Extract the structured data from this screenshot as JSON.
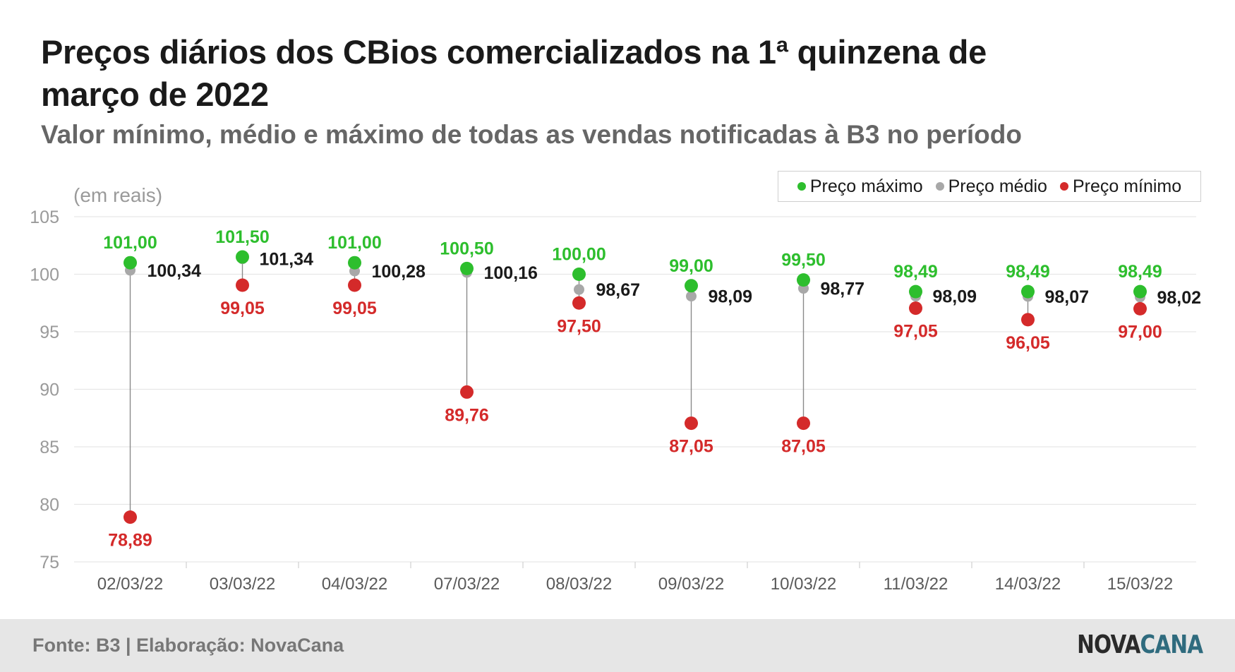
{
  "header": {
    "title": "Preços diários dos CBios comercializados na 1ª quinzena de março de 2022",
    "subtitle": "Valor mínimo, médio e máximo de todas as vendas notificadas à B3 no período"
  },
  "legend": {
    "max_label": "Preço máximo",
    "avg_label": "Preço médio",
    "min_label": "Preço mínimo"
  },
  "footer": {
    "source": "Fonte: B3 | Elaboração: NovaCana",
    "logo_part1": "NOVA",
    "logo_part2": "CANA"
  },
  "colors": {
    "max": "#2dbe2d",
    "avg": "#a8a8a8",
    "min": "#d42a2a",
    "avg_label": "#1a1a1a",
    "grid": "#e6e6e6",
    "axis_text": "#9a9a9a",
    "stem": "#8a8a8a"
  },
  "chart_data": {
    "type": "scatter",
    "ylabel": "(em reais)",
    "ylim": [
      75,
      105
    ],
    "yticks": [
      75,
      80,
      85,
      90,
      95,
      100,
      105
    ],
    "grid": true,
    "legend_position": "top-right",
    "categories": [
      "02/03/22",
      "03/03/22",
      "04/03/22",
      "07/03/22",
      "08/03/22",
      "09/03/22",
      "10/03/22",
      "11/03/22",
      "14/03/22",
      "15/03/22"
    ],
    "series": [
      {
        "name": "Preço máximo",
        "values": [
          101.0,
          101.5,
          101.0,
          100.5,
          100.0,
          99.0,
          99.5,
          98.49,
          98.49,
          98.49
        ],
        "labels": [
          "101,00",
          "101,50",
          "101,00",
          "100,50",
          "100,00",
          "99,00",
          "99,50",
          "98,49",
          "98,49",
          "98,49"
        ]
      },
      {
        "name": "Preço médio",
        "values": [
          100.34,
          101.34,
          100.28,
          100.16,
          98.67,
          98.09,
          98.77,
          98.09,
          98.07,
          98.02
        ],
        "labels": [
          "100,34",
          "101,34",
          "100,28",
          "100,16",
          "98,67",
          "98,09",
          "98,77",
          "98,09",
          "98,07",
          "98,02"
        ]
      },
      {
        "name": "Preço mínimo",
        "values": [
          78.89,
          99.05,
          99.05,
          89.76,
          97.5,
          87.05,
          87.05,
          97.05,
          96.05,
          97.0
        ],
        "labels": [
          "78,89",
          "99,05",
          "99,05",
          "89,76",
          "97,50",
          "87,05",
          "87,05",
          "97,05",
          "96,05",
          "97,00"
        ]
      }
    ]
  }
}
